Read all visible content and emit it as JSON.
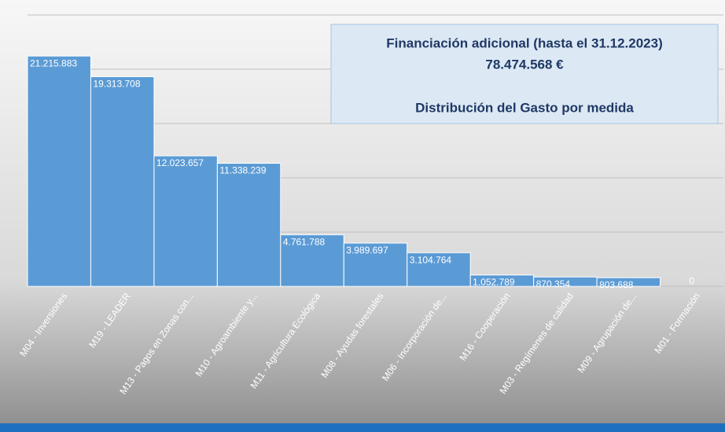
{
  "chart_data": {
    "type": "bar",
    "title": "Financiación adicional (hasta el 31.12.2023)",
    "subtitle": "78.474.568 €",
    "annotation": "Distribución del Gasto por medida",
    "categories": [
      "M04 - Inversiones",
      "M19 - LEADER",
      "M13 - Pagos en Zonas con...",
      "M10 - Agroambiente y...",
      "M11 - Agricultura Ecológica",
      "M08 - Ayudas forestales",
      "M06 - Incorporación de...",
      "M16 - Cooperación",
      "M03 - Regímenes de calidad",
      "M09 - Agrupación de...",
      "M01 - Formación"
    ],
    "values": [
      21215883,
      19313708,
      12023657,
      11338239,
      4761788,
      3989697,
      3104764,
      1052789,
      870354,
      803688,
      0
    ],
    "value_labels": [
      "21.215.883",
      "19.313.708",
      "12.023.657",
      "11.338.239",
      "4.761.788",
      "3.989.697",
      "3.104.764",
      "1.052.789",
      "870.354",
      "803.688",
      "0"
    ],
    "color": "#5b9bd5",
    "ylim": [
      0,
      25000000
    ],
    "yticks": [
      0,
      5000000,
      10000000,
      15000000,
      20000000,
      25000000
    ],
    "grid": true
  }
}
